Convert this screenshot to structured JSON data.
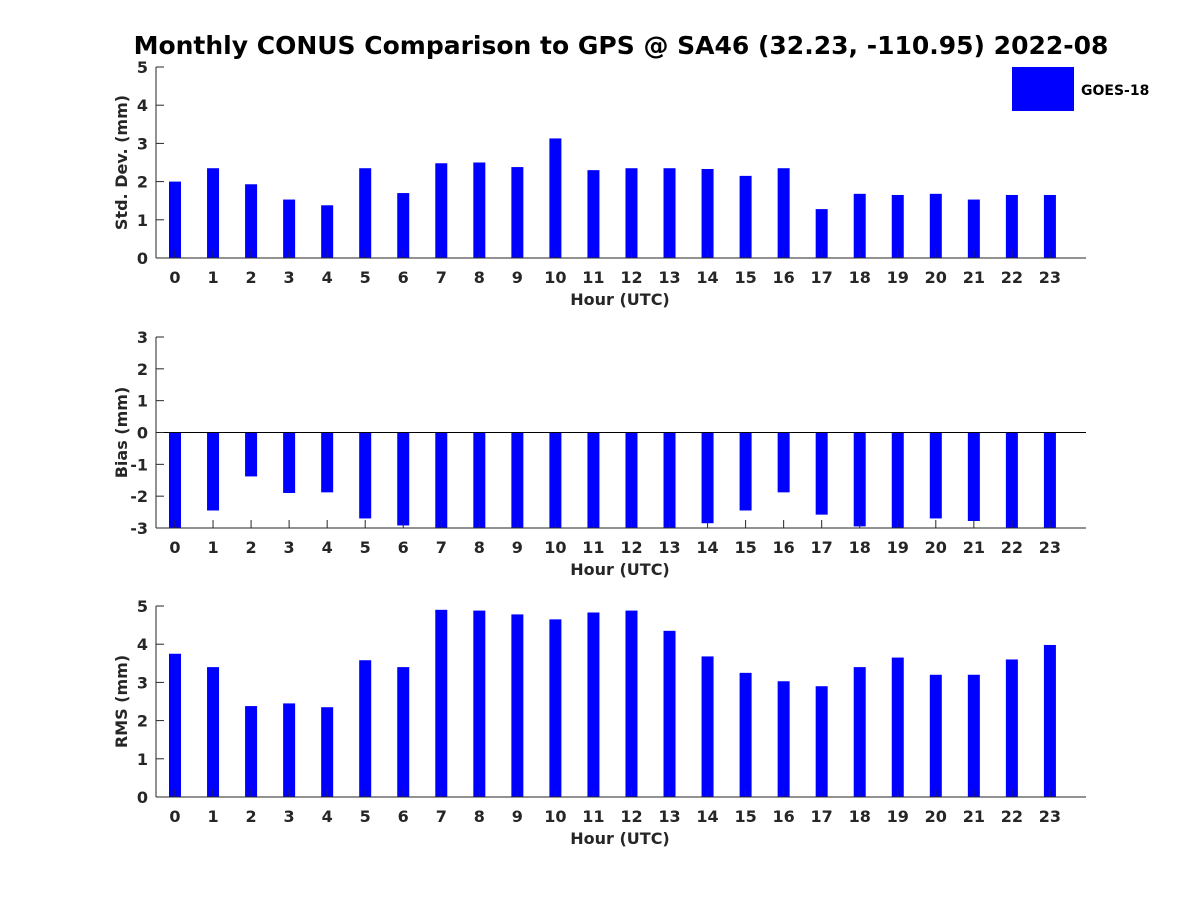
{
  "colors": {
    "series": "#0000ff",
    "axis": "#262626",
    "background": "#ffffff"
  },
  "chart_data": [
    {
      "type": "bar",
      "title": "Monthly CONUS Comparison to GPS @ SA46 (32.23, -110.95) 2022-08",
      "xlabel": "Hour (UTC)",
      "ylabel": "Std. Dev. (mm)",
      "ylim": [
        0,
        5
      ],
      "yticks": [
        0,
        1,
        2,
        3,
        4,
        5
      ],
      "categories": [
        "0",
        "1",
        "2",
        "3",
        "4",
        "5",
        "6",
        "7",
        "8",
        "9",
        "10",
        "11",
        "12",
        "13",
        "14",
        "15",
        "16",
        "17",
        "18",
        "19",
        "20",
        "21",
        "22",
        "23"
      ],
      "series": [
        {
          "name": "GOES-18",
          "values": [
            2.0,
            2.35,
            1.93,
            1.53,
            1.38,
            2.35,
            1.7,
            2.48,
            2.5,
            2.38,
            3.13,
            2.3,
            2.35,
            2.35,
            2.33,
            2.15,
            2.35,
            1.28,
            1.68,
            1.65,
            1.68,
            1.53,
            1.65,
            1.65
          ]
        }
      ],
      "legend": {
        "position": "top-right",
        "entries": [
          "GOES-18"
        ]
      },
      "grid": false
    },
    {
      "type": "bar",
      "xlabel": "Hour (UTC)",
      "ylabel": "Bias (mm)",
      "ylim": [
        -3,
        3
      ],
      "yticks": [
        -3,
        -2,
        -1,
        0,
        1,
        2,
        3
      ],
      "categories": [
        "0",
        "1",
        "2",
        "3",
        "4",
        "5",
        "6",
        "7",
        "8",
        "9",
        "10",
        "11",
        "12",
        "13",
        "14",
        "15",
        "16",
        "17",
        "18",
        "19",
        "20",
        "21",
        "22",
        "23"
      ],
      "series": [
        {
          "name": "GOES-18",
          "values": [
            -3.0,
            -2.45,
            -1.38,
            -1.9,
            -1.88,
            -2.7,
            -2.92,
            -3.0,
            -3.0,
            -3.0,
            -3.0,
            -3.0,
            -3.0,
            -3.0,
            -2.85,
            -2.45,
            -1.88,
            -2.58,
            -2.95,
            -3.0,
            -2.7,
            -2.78,
            -3.0,
            -3.0
          ]
        }
      ],
      "grid": false
    },
    {
      "type": "bar",
      "xlabel": "Hour (UTC)",
      "ylabel": "RMS (mm)",
      "ylim": [
        0,
        5
      ],
      "yticks": [
        0,
        1,
        2,
        3,
        4,
        5
      ],
      "categories": [
        "0",
        "1",
        "2",
        "3",
        "4",
        "5",
        "6",
        "7",
        "8",
        "9",
        "10",
        "11",
        "12",
        "13",
        "14",
        "15",
        "16",
        "17",
        "18",
        "19",
        "20",
        "21",
        "22",
        "23"
      ],
      "series": [
        {
          "name": "GOES-18",
          "values": [
            3.75,
            3.4,
            2.38,
            2.45,
            2.35,
            3.58,
            3.4,
            4.9,
            4.88,
            4.78,
            4.65,
            4.83,
            4.88,
            4.35,
            3.68,
            3.25,
            3.03,
            2.9,
            3.4,
            3.65,
            3.2,
            3.2,
            3.6,
            3.98
          ]
        }
      ],
      "grid": false
    }
  ]
}
